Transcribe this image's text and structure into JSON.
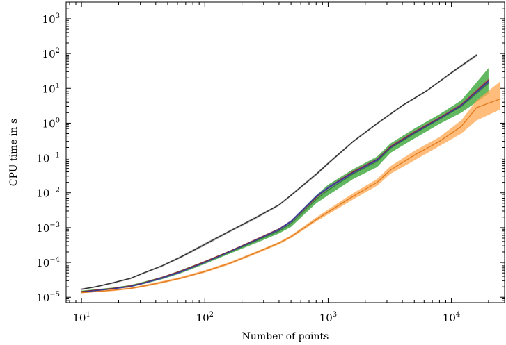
{
  "chart_data": {
    "type": "line",
    "title": "",
    "xlabel": "Number of points",
    "ylabel": "CPU time in s",
    "x_scale": "log",
    "y_scale": "log",
    "xlim": [
      7.5,
      27000
    ],
    "ylim": [
      7e-06,
      3000
    ],
    "x_ticks": [
      {
        "value": 10,
        "label": "10",
        "exp": "1"
      },
      {
        "value": 100,
        "label": "10",
        "exp": "2"
      },
      {
        "value": 1000,
        "label": "10",
        "exp": "3"
      },
      {
        "value": 10000,
        "label": "10",
        "exp": "4"
      }
    ],
    "y_ticks": [
      {
        "value": 1e-05,
        "label": "10",
        "exp": "−5"
      },
      {
        "value": 0.0001,
        "label": "10",
        "exp": "−4"
      },
      {
        "value": 0.001,
        "label": "10",
        "exp": "−3"
      },
      {
        "value": 0.01,
        "label": "10",
        "exp": "−2"
      },
      {
        "value": 0.1,
        "label": "10",
        "exp": "−1"
      },
      {
        "value": 1,
        "label": "10",
        "exp": "0"
      },
      {
        "value": 10,
        "label": "10",
        "exp": "1"
      },
      {
        "value": 100,
        "label": "10",
        "exp": "2"
      },
      {
        "value": 1000,
        "label": "10",
        "exp": "3"
      }
    ],
    "grid": false,
    "series": [
      {
        "color": "#2a2a2a",
        "band_color": "#9a9a9a",
        "x": [
          10,
          13,
          18,
          25,
          32,
          45,
          63,
          100,
          160,
          250,
          400,
          500,
          800,
          1000,
          1600,
          2500,
          4000,
          6300,
          10000,
          16000
        ],
        "y": [
          1.7e-05,
          2e-05,
          2.6e-05,
          3.5e-05,
          5e-05,
          8e-05,
          0.00014,
          0.00033,
          0.0008,
          0.0018,
          0.0045,
          0.0085,
          0.034,
          0.07,
          0.3,
          0.98,
          3.2,
          8.5,
          28,
          90
        ],
        "y_low": [
          1.6e-05,
          1.9e-05,
          2.45e-05,
          3.3e-05,
          4.7e-05,
          7.5e-05,
          0.00013,
          0.0003,
          0.00074,
          0.00165,
          0.0042,
          0.0079,
          0.031,
          0.064,
          0.28,
          0.92,
          3.0,
          8.0,
          26,
          82
        ],
        "y_high": [
          1.8e-05,
          2.1e-05,
          2.75e-05,
          3.7e-05,
          5.3e-05,
          8.5e-05,
          0.00015,
          0.00036,
          0.00086,
          0.00195,
          0.0048,
          0.0091,
          0.037,
          0.076,
          0.32,
          1.05,
          3.4,
          9.0,
          30,
          98
        ]
      },
      {
        "color": "#3a7a3a",
        "band_color": "#2ca02c",
        "x": [
          10,
          13,
          18,
          25,
          32,
          45,
          63,
          100,
          160,
          250,
          400,
          500,
          800,
          1000,
          1600,
          2500,
          3200,
          5000,
          8000,
          12000,
          20000
        ],
        "y": [
          1.45e-05,
          1.6e-05,
          1.8e-05,
          2.1e-05,
          2.6e-05,
          3.6e-05,
          5.3e-05,
          0.0001,
          0.0002,
          0.00039,
          0.0008,
          0.0013,
          0.0065,
          0.012,
          0.035,
          0.08,
          0.19,
          0.5,
          1.3,
          3.0,
          14
        ],
        "y_low": [
          1.35e-05,
          1.5e-05,
          1.7e-05,
          1.95e-05,
          2.4e-05,
          3.3e-05,
          4.8e-05,
          9e-05,
          0.00018,
          0.00034,
          0.00068,
          0.00105,
          0.005,
          0.0085,
          0.025,
          0.055,
          0.14,
          0.36,
          0.95,
          2.0,
          7.0
        ],
        "y_high": [
          1.55e-05,
          1.7e-05,
          1.9e-05,
          2.25e-05,
          2.8e-05,
          3.9e-05,
          5.9e-05,
          0.00011,
          0.00022,
          0.00044,
          0.00095,
          0.0016,
          0.0085,
          0.017,
          0.048,
          0.11,
          0.26,
          0.7,
          1.8,
          4.5,
          38
        ]
      },
      {
        "color": "#8a2a2a",
        "band_color": "#b2435a",
        "x": [
          10,
          13,
          18,
          25,
          32,
          45,
          63,
          100,
          160,
          250,
          400,
          500,
          800,
          1000,
          1600,
          2500,
          3200,
          5000,
          8000,
          12000,
          20000
        ],
        "y": [
          1.45e-05,
          1.6e-05,
          1.8e-05,
          2.1e-05,
          2.6e-05,
          3.7e-05,
          5.5e-05,
          0.000105,
          0.00021,
          0.00042,
          0.0009,
          0.0015,
          0.0075,
          0.014,
          0.04,
          0.09,
          0.21,
          0.55,
          1.4,
          3.3,
          17
        ],
        "y_low": [
          1.4e-05,
          1.55e-05,
          1.75e-05,
          2e-05,
          2.5e-05,
          3.5e-05,
          5.2e-05,
          0.0001,
          0.0002,
          0.0004,
          0.00085,
          0.0014,
          0.007,
          0.013,
          0.037,
          0.083,
          0.195,
          0.51,
          1.3,
          3.0,
          15
        ],
        "y_high": [
          1.5e-05,
          1.65e-05,
          1.85e-05,
          2.2e-05,
          2.7e-05,
          3.9e-05,
          5.8e-05,
          0.00011,
          0.00022,
          0.00045,
          0.00096,
          0.0016,
          0.008,
          0.015,
          0.043,
          0.097,
          0.225,
          0.59,
          1.5,
          3.6,
          19
        ]
      },
      {
        "color": "#3a3a9a",
        "band_color": "#4a5ad0",
        "x": [
          10,
          13,
          18,
          25,
          32,
          45,
          63,
          100,
          160,
          250,
          400,
          500,
          800,
          1000,
          1600,
          2500,
          3200,
          5000,
          8000,
          12000,
          20000
        ],
        "y": [
          1.4e-05,
          1.55e-05,
          1.75e-05,
          2.05e-05,
          2.55e-05,
          3.6e-05,
          5.3e-05,
          0.0001,
          0.000205,
          0.00041,
          0.00088,
          0.0015,
          0.0078,
          0.014,
          0.038,
          0.088,
          0.2,
          0.53,
          1.35,
          3.2,
          16
        ],
        "y_low": [
          1.35e-05,
          1.5e-05,
          1.7e-05,
          1.95e-05,
          2.45e-05,
          3.4e-05,
          5e-05,
          9.6e-05,
          0.000195,
          0.00039,
          0.00083,
          0.0014,
          0.0072,
          0.013,
          0.035,
          0.082,
          0.186,
          0.49,
          1.25,
          2.95,
          14.5
        ],
        "y_high": [
          1.45e-05,
          1.6e-05,
          1.8e-05,
          2.15e-05,
          2.65e-05,
          3.8e-05,
          5.6e-05,
          0.000105,
          0.000215,
          0.00043,
          0.00094,
          0.00162,
          0.0085,
          0.015,
          0.041,
          0.095,
          0.215,
          0.57,
          1.45,
          3.45,
          17.5
        ]
      },
      {
        "color": "#e07a1f",
        "band_color": "#ffa64d",
        "x": [
          10,
          13,
          18,
          25,
          32,
          45,
          63,
          100,
          160,
          250,
          400,
          500,
          800,
          1000,
          1600,
          2500,
          3200,
          5000,
          8000,
          12000,
          16000,
          25000
        ],
        "y": [
          1.35e-05,
          1.45e-05,
          1.6e-05,
          1.8e-05,
          2.1e-05,
          2.7e-05,
          3.5e-05,
          5.5e-05,
          9.5e-05,
          0.00018,
          0.00036,
          0.00055,
          0.0017,
          0.0028,
          0.008,
          0.02,
          0.045,
          0.12,
          0.3,
          0.8,
          2.8,
          5.0
        ],
        "y_low": [
          1.3e-05,
          1.4e-05,
          1.5e-05,
          1.7e-05,
          1.98e-05,
          2.5e-05,
          3.3e-05,
          5.1e-05,
          8.8e-05,
          0.000165,
          0.00033,
          0.0005,
          0.0015,
          0.0024,
          0.0065,
          0.016,
          0.035,
          0.085,
          0.22,
          0.5,
          1.2,
          2.5
        ],
        "y_high": [
          1.45e-05,
          1.55e-05,
          1.7e-05,
          1.9e-05,
          2.25e-05,
          2.9e-05,
          3.8e-05,
          6e-05,
          0.000103,
          0.000195,
          0.00039,
          0.0006,
          0.00195,
          0.0033,
          0.0098,
          0.025,
          0.058,
          0.16,
          0.4,
          1.2,
          4.5,
          16
        ]
      }
    ]
  }
}
